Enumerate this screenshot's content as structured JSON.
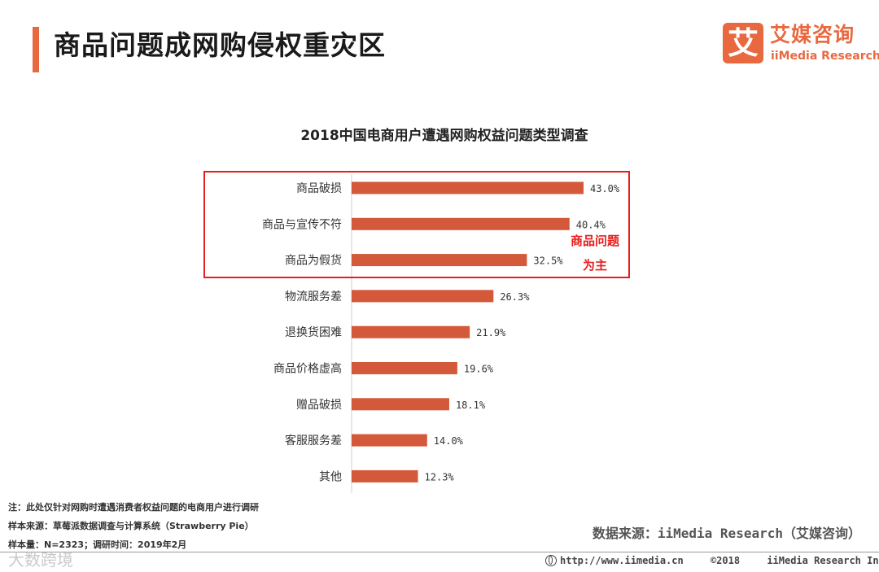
{
  "header": {
    "title": "商品问题成网购侵权重灾区",
    "accent_color": "#e8693f"
  },
  "logo": {
    "mark": "艾",
    "name_cn": "艾媒咨询",
    "name_en": "iiMedia Research"
  },
  "chart_data": {
    "type": "bar",
    "orientation": "horizontal",
    "title": "2018中国电商用户遭遇网购权益问题类型调查",
    "categories": [
      "商品破损",
      "商品与宣传不符",
      "商品为假货",
      "物流服务差",
      "退换货困难",
      "商品价格虚高",
      "赠品破损",
      "客服服务差",
      "其他"
    ],
    "values": [
      43.0,
      40.4,
      32.5,
      26.3,
      21.9,
      19.6,
      18.1,
      14.0,
      12.3
    ],
    "value_labels": [
      "43.0%",
      "40.4%",
      "32.5%",
      "26.3%",
      "21.9%",
      "19.6%",
      "18.1%",
      "14.0%",
      "12.3%"
    ],
    "unit": "%",
    "xlim": [
      0,
      50
    ],
    "bar_color": "#d4583a",
    "highlight": {
      "categories": [
        "商品破损",
        "商品与宣传不符",
        "商品为假货"
      ],
      "box_color": "#e81c1c",
      "annotation_lines": [
        "商品问题",
        "为主"
      ]
    }
  },
  "notes": [
    "注：此处仅针对网购时遭遇消费者权益问题的电商用户进行调研",
    "样本来源：草莓派数据调查与计算系统（Strawberry  Pie）",
    "样本量：N=2323；调研时间：2019年2月"
  ],
  "source": "数据来源：iiMedia Research（艾媒咨询）",
  "footer": {
    "url": "http://www.iimedia.cn",
    "copyright": "©2018",
    "company": "iiMedia Research  Inc"
  },
  "watermark": "大数跨境"
}
